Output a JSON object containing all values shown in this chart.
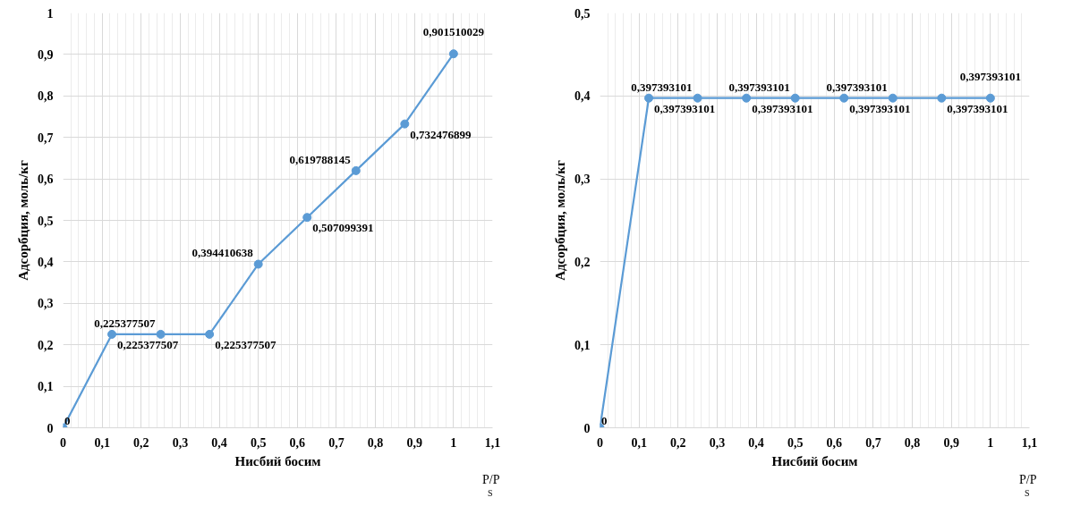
{
  "chart_data": [
    {
      "type": "line",
      "xlabel": "Нисбий босим",
      "ylabel": "Адсорбция, моль/кг",
      "annotations": [
        "P/P$_{S}$"
      ],
      "x": [
        0,
        0.125,
        0.25,
        0.375,
        0.5,
        0.625,
        0.75,
        0.875,
        1
      ],
      "series": [
        {
          "color": "#5b9bd5",
          "values": [
            0,
            0.225377507,
            0.225377507,
            0.225377507,
            0.394410638,
            0.507099391,
            0.619788145,
            0.732476899,
            0.901510029
          ],
          "value_labels": [
            "0",
            "0,225377507",
            "0,225377507",
            "0,225377507",
            "0,394410638",
            "0,507099391",
            "0,619788145",
            "0,732476899",
            "0,901510029"
          ]
        }
      ],
      "xlim": [
        0,
        1.1
      ],
      "ylim": [
        0,
        1
      ],
      "xticks": [
        0,
        {
          "value": 0.1,
          "label": "0,1"
        },
        {
          "value": 0.2,
          "label": "0,2"
        },
        {
          "value": 0.3,
          "label": "0,3"
        },
        {
          "value": 0.4,
          "label": "0,4"
        },
        {
          "value": 0.5,
          "label": "0,5"
        },
        {
          "value": 0.6,
          "label": "0,6"
        },
        {
          "value": 0.7,
          "label": "0,7"
        },
        {
          "value": 0.8,
          "label": "0,8"
        },
        {
          "value": 0.9,
          "label": "0,9"
        },
        1,
        {
          "value": 1.1,
          "label": "1,1"
        }
      ],
      "yticks": [
        0,
        {
          "value": 0.1,
          "label": "0,1"
        },
        {
          "value": 0.2,
          "label": "0,2"
        },
        {
          "value": 0.3,
          "label": "0,3"
        },
        {
          "value": 0.4,
          "label": "0,4"
        },
        {
          "value": 0.5,
          "label": "0,5"
        },
        {
          "value": 0.6,
          "label": "0,6"
        },
        {
          "value": 0.7,
          "label": "0,7"
        },
        {
          "value": 0.8,
          "label": "0,8"
        },
        {
          "value": 0.9,
          "label": "0,9"
        },
        1
      ],
      "grid": true,
      "marker": "circle",
      "line_style": "solid"
    },
    {
      "type": "line",
      "xlabel": "Нисбий босим",
      "ylabel": "Адсорбция, моль/кг",
      "annotations": [
        "P/P$_{S}$"
      ],
      "x": [
        0,
        0.125,
        0.25,
        0.375,
        0.5,
        0.625,
        0.75,
        0.875,
        1
      ],
      "series": [
        {
          "color": "#5b9bd5",
          "values": [
            0,
            0.397393101,
            0.397393101,
            0.397393101,
            0.397393101,
            0.397393101,
            0.397393101,
            0.397393101,
            0.397393101
          ],
          "value_labels": [
            "0",
            "0,397393101",
            "0,397393101",
            "0,397393101",
            "0,397393101",
            "0,397393101",
            "0,397393101",
            "0,397393101",
            "0,397393101"
          ]
        }
      ],
      "xlim": [
        0,
        1.1
      ],
      "ylim": [
        0,
        0.5
      ],
      "xticks": [
        0,
        {
          "value": 0.1,
          "label": "0,1"
        },
        {
          "value": 0.2,
          "label": "0,2"
        },
        {
          "value": 0.3,
          "label": "0,3"
        },
        {
          "value": 0.4,
          "label": "0,4"
        },
        {
          "value": 0.5,
          "label": "0,5"
        },
        {
          "value": 0.6,
          "label": "0,6"
        },
        {
          "value": 0.7,
          "label": "0,7"
        },
        {
          "value": 0.8,
          "label": "0,8"
        },
        {
          "value": 0.9,
          "label": "0,9"
        },
        1,
        {
          "value": 1.1,
          "label": "1,1"
        }
      ],
      "yticks": [
        0,
        {
          "value": 0.1,
          "label": "0,1"
        },
        {
          "value": 0.2,
          "label": "0,2"
        },
        {
          "value": 0.3,
          "label": "0,3"
        },
        {
          "value": 0.4,
          "label": "0,4"
        },
        {
          "value": 0.5,
          "label": "0,5"
        }
      ],
      "grid": true,
      "marker": "circle",
      "line_style": "solid"
    }
  ]
}
